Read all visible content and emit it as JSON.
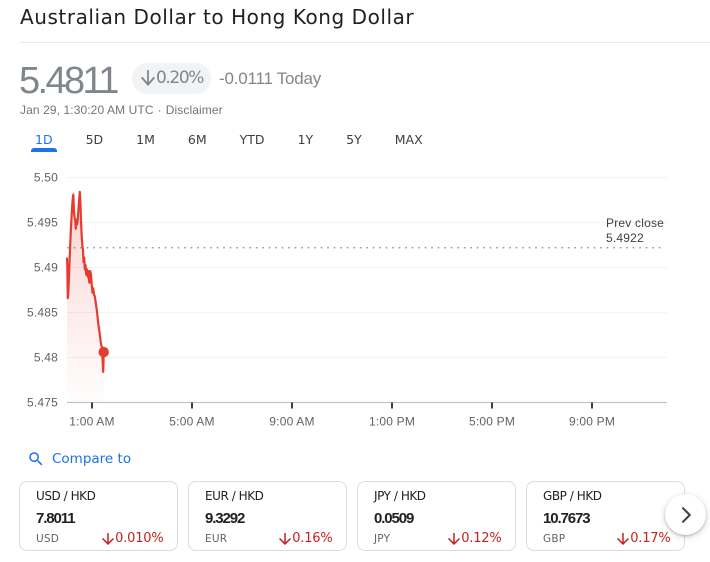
{
  "header": {
    "title": "Australian Dollar to Hong Kong Dollar"
  },
  "quote": {
    "price": "5.4811",
    "change_percent": "0.20%",
    "change_direction": "down",
    "change_value": "-0.0111",
    "change_period": "Today",
    "timestamp": "Jan 29, 1:30:20 AM UTC",
    "separator": "·",
    "disclaimer_label": "Disclaimer"
  },
  "tabs": {
    "items": [
      {
        "label": "1D",
        "active": true
      },
      {
        "label": "5D",
        "active": false
      },
      {
        "label": "1M",
        "active": false
      },
      {
        "label": "6M",
        "active": false
      },
      {
        "label": "YTD",
        "active": false
      },
      {
        "label": "1Y",
        "active": false
      },
      {
        "label": "5Y",
        "active": false
      },
      {
        "label": "MAX",
        "active": false
      }
    ]
  },
  "chart_data": {
    "type": "area",
    "series": [
      {
        "name": "AUD/HKD",
        "color": "#e63b2f",
        "points": [
          [
            0.0,
            5.491
          ],
          [
            0.012,
            5.4902
          ],
          [
            0.032,
            5.4866
          ],
          [
            0.052,
            5.4872
          ],
          [
            0.08,
            5.489
          ],
          [
            0.12,
            5.492
          ],
          [
            0.16,
            5.4945
          ],
          [
            0.2,
            5.4965
          ],
          [
            0.232,
            5.4977
          ],
          [
            0.252,
            5.4981
          ],
          [
            0.28,
            5.4962
          ],
          [
            0.308,
            5.4955
          ],
          [
            0.332,
            5.4952
          ],
          [
            0.352,
            5.4943
          ],
          [
            0.376,
            5.4953
          ],
          [
            0.4,
            5.4948
          ],
          [
            0.424,
            5.4952
          ],
          [
            0.452,
            5.4962
          ],
          [
            0.48,
            5.4973
          ],
          [
            0.512,
            5.4984
          ],
          [
            0.536,
            5.4972
          ],
          [
            0.56,
            5.4952
          ],
          [
            0.588,
            5.4935
          ],
          [
            0.616,
            5.4924
          ],
          [
            0.64,
            5.4919
          ],
          [
            0.66,
            5.4906
          ],
          [
            0.688,
            5.4911
          ],
          [
            0.712,
            5.4898
          ],
          [
            0.74,
            5.4903
          ],
          [
            0.768,
            5.4892
          ],
          [
            0.796,
            5.4898
          ],
          [
            0.824,
            5.489
          ],
          [
            0.852,
            5.4896
          ],
          [
            0.88,
            5.4885
          ],
          [
            0.9,
            5.4883
          ],
          [
            0.928,
            5.4896
          ],
          [
            0.96,
            5.4892
          ],
          [
            0.992,
            5.488
          ],
          [
            1.02,
            5.4872
          ],
          [
            1.048,
            5.4877
          ],
          [
            1.08,
            5.487
          ],
          [
            1.112,
            5.4868
          ],
          [
            1.144,
            5.4862
          ],
          [
            1.18,
            5.4855
          ],
          [
            1.212,
            5.4848
          ],
          [
            1.248,
            5.4838
          ],
          [
            1.28,
            5.4832
          ],
          [
            1.312,
            5.4826
          ],
          [
            1.344,
            5.4818
          ],
          [
            1.376,
            5.4813
          ],
          [
            1.4,
            5.4812
          ],
          [
            1.42,
            5.48
          ],
          [
            1.436,
            5.479
          ],
          [
            1.448,
            5.4784
          ],
          [
            1.46,
            5.4795
          ],
          [
            1.468,
            5.4806
          ]
        ]
      }
    ],
    "xlim_hours": [
      0,
      24
    ],
    "ylim": [
      5.475,
      5.5
    ],
    "yticks": [
      5.5,
      5.495,
      5.49,
      5.485,
      5.48,
      5.475
    ],
    "ytick_labels": [
      "5.50",
      "5.495",
      "5.49",
      "5.485",
      "5.48",
      "5.475"
    ],
    "xticks_hours": [
      1,
      5,
      9,
      13,
      17,
      21
    ],
    "xtick_labels": [
      "1:00 AM",
      "5:00 AM",
      "9:00 AM",
      "1:00 PM",
      "5:00 PM",
      "9:00 PM"
    ],
    "prev_close": {
      "label": "Prev close",
      "value": "5.4922",
      "price": 5.4922
    },
    "grid": true,
    "legend": "none",
    "end_dot": true
  },
  "compare": {
    "label": "Compare to"
  },
  "cards": {
    "items": [
      {
        "pair": "USD / HKD",
        "value": "7.8011",
        "code": "USD",
        "percent": "0.010%",
        "direction": "down"
      },
      {
        "pair": "EUR / HKD",
        "value": "9.3292",
        "code": "EUR",
        "percent": "0.16%",
        "direction": "down"
      },
      {
        "pair": "JPY / HKD",
        "value": "0.0509",
        "code": "JPY",
        "percent": "0.12%",
        "direction": "down"
      },
      {
        "pair": "GBP / HKD",
        "value": "10.7673",
        "code": "GBP",
        "percent": "0.17%",
        "direction": "down"
      }
    ]
  },
  "icons": {
    "badge_arrow": "arrow-downward",
    "card_arrow": "arrow-downward",
    "compare_icon": "search",
    "scroll_icon": "chevron-right"
  },
  "colors": {
    "title": "#202124",
    "muted_quote": "#80868b",
    "badge_bg": "#f1f3f4",
    "accent_blue": "#1a73e8",
    "down_red": "#c5221f",
    "line_red": "#e63b2f",
    "axis_label": "#5f6368",
    "card_border": "#dadce0"
  }
}
